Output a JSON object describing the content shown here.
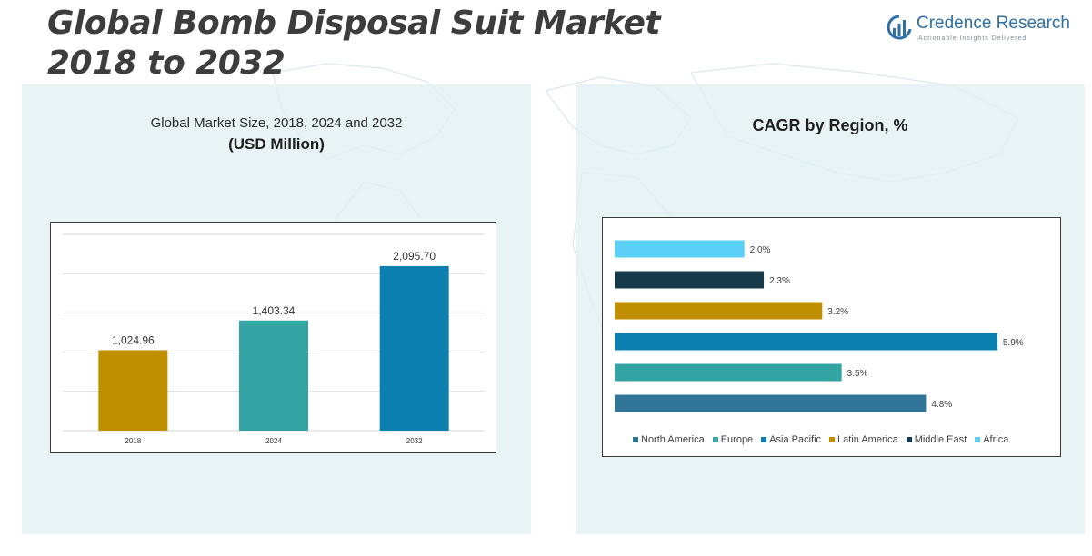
{
  "header": {
    "title_line1": "Global Bomb Disposal Suit Market",
    "title_line2": "2018 to 2032"
  },
  "logo": {
    "name": "Credence Research",
    "tagline": "Actionable Insights Delivered",
    "icon": "bar-chart-icon"
  },
  "left_panel": {
    "subtitle": "Global Market Size, 2018, 2024 and 2032",
    "unit": "(USD Million)"
  },
  "right_panel": {
    "title": "CAGR by Region, %"
  },
  "colors": {
    "accent": "#2d6fa5",
    "panel_bg": "#e1eff4"
  },
  "chart_data": [
    {
      "type": "bar",
      "orientation": "vertical",
      "title": "Global Market Size, 2018, 2024 and 2032",
      "ylabel": "(USD Million)",
      "categories": [
        "2018",
        "2024",
        "2032"
      ],
      "values": [
        1024.96,
        1403.34,
        2095.7
      ],
      "data_labels": [
        "1,024.96",
        "1,403.34",
        "2,095.70"
      ],
      "colors": [
        "#bf8f00",
        "#33a3a3",
        "#0a7fb0"
      ],
      "ylim": [
        0,
        2500
      ],
      "grid": true
    },
    {
      "type": "bar",
      "orientation": "horizontal",
      "title": "CAGR by Region, %",
      "categories": [
        "North America",
        "Europe",
        "Asia Pacific",
        "Latin America",
        "Middle East",
        "Africa"
      ],
      "values": [
        4.8,
        3.5,
        5.9,
        3.2,
        2.3,
        2.0
      ],
      "data_labels": [
        "4.8%",
        "3.5%",
        "5.9%",
        "3.2%",
        "2.3%",
        "2.0%"
      ],
      "colors": [
        "#2f7598",
        "#33a3a3",
        "#0a7fb0",
        "#bf8f00",
        "#173a4a",
        "#5bcff5"
      ],
      "xlim": [
        0,
        6
      ],
      "grid": false,
      "legend_position": "bottom"
    }
  ]
}
